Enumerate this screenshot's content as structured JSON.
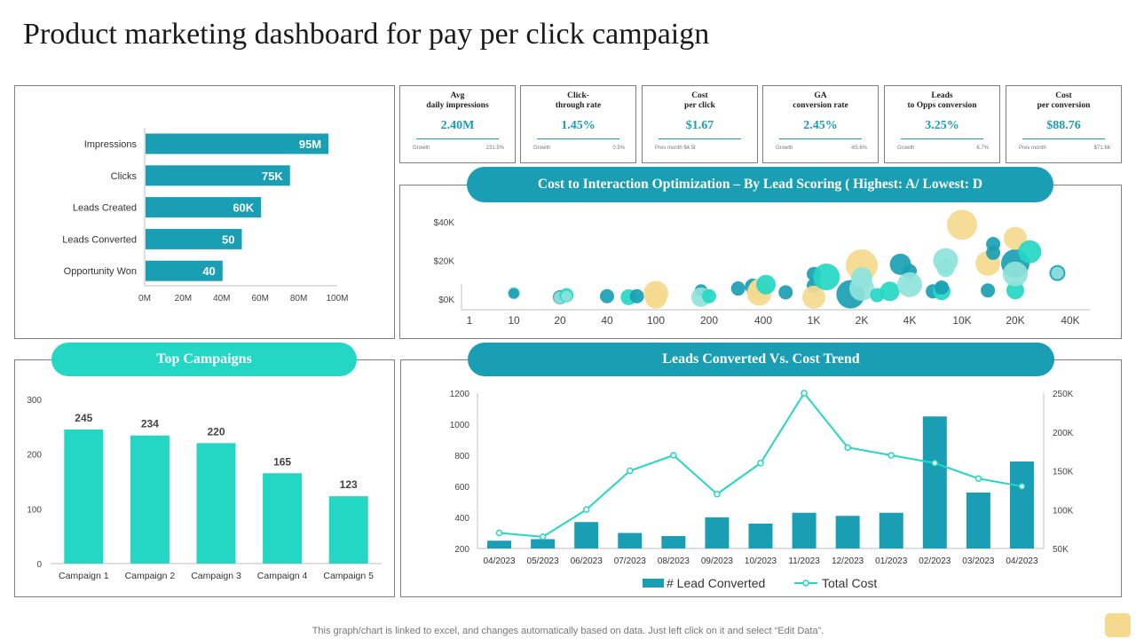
{
  "page": {
    "title": "Product marketing dashboard for pay per click campaign",
    "footnote": "This graph/chart is linked to excel,  and changes automatically based on data. Just left click on it and select “Edit Data”."
  },
  "colors": {
    "teal": "#1a9eb3",
    "aqua": "#24d7c4",
    "mint": "#8fe3da",
    "sand": "#f4d98e",
    "axis": "#bfbfbf"
  },
  "kpis": [
    {
      "label_line1": "Avg",
      "label_line2": "daily impressions",
      "value": "2.40M",
      "foot_left": "Growth",
      "foot_right": "231.5%"
    },
    {
      "label_line1": "Click-",
      "label_line2": "through rate",
      "value": "1.45%",
      "foot_left": "Growth",
      "foot_right": "0.5%"
    },
    {
      "label_line1": "Cost",
      "label_line2": "per click",
      "value": "$1.67",
      "foot_left": "Prev month $4.5t",
      "foot_right": ""
    },
    {
      "label_line1": "GA",
      "label_line2": "conversion rate",
      "value": "2.45%",
      "foot_left": "Growth",
      "foot_right": "-65.6%"
    },
    {
      "label_line1": "Leads",
      "label_line2": "to Opps conversion",
      "value": "3.25%",
      "foot_left": "Growth",
      "foot_right": "6.7%"
    },
    {
      "label_line1": "Cost",
      "label_line2": "per conversion",
      "value": "$88.76",
      "foot_left": "Prev month",
      "foot_right": "$71.66"
    }
  ],
  "headers": {
    "bubble": "Cost to Interaction Optimization – By Lead Scoring ( Highest: A/ Lowest: D",
    "campaigns": "Top Campaigns",
    "trend": "Leads Converted Vs. Cost Trend"
  },
  "chart_data": [
    {
      "type": "bar",
      "orientation": "horizontal",
      "categories": [
        "Impressions",
        "Clicks",
        "Leads Created",
        "Leads Converted",
        "Opportunity Won"
      ],
      "values": [
        95,
        75,
        60,
        50,
        40
      ],
      "data_labels": [
        "95M",
        "75K",
        "60K",
        "50",
        "40"
      ],
      "x_ticks": [
        "0M",
        "20M",
        "40M",
        "60M",
        "80M",
        "100M"
      ],
      "xlim": [
        0,
        100
      ],
      "grid": false
    },
    {
      "type": "scatter",
      "subtype": "bubble",
      "title": "Cost to Interaction Optimization – By Lead Scoring ( Highest: A/ Lowest: D",
      "x_scale": "log",
      "x_ticks": [
        "1",
        "10",
        "20",
        "40",
        "100",
        "200",
        "400",
        "1K",
        "2K",
        "4K",
        "10K",
        "20K",
        "40K"
      ],
      "y_ticks": [
        "$0K",
        "$20K",
        "$40K"
      ],
      "ylim": [
        0,
        40000
      ],
      "points": [
        {
          "x": 10,
          "y": 3000,
          "r": 7,
          "c": "mint"
        },
        {
          "x": 10,
          "y": 3000,
          "r": 6,
          "c": "teal"
        },
        {
          "x": 20,
          "y": 1000,
          "r": 8,
          "c": "teal"
        },
        {
          "x": 20,
          "y": 800,
          "r": 7,
          "c": "mint"
        },
        {
          "x": 22,
          "y": 2000,
          "r": 8,
          "c": "aqua"
        },
        {
          "x": 22,
          "y": 1500,
          "r": 6,
          "c": "mint"
        },
        {
          "x": 40,
          "y": 1500,
          "r": 8,
          "c": "teal"
        },
        {
          "x": 60,
          "y": 1000,
          "r": 9,
          "c": "aqua"
        },
        {
          "x": 70,
          "y": 1500,
          "r": 8,
          "c": "teal"
        },
        {
          "x": 100,
          "y": 3000,
          "r": 14,
          "c": "sand"
        },
        {
          "x": 100,
          "y": 500,
          "r": 12,
          "c": "sand"
        },
        {
          "x": 180,
          "y": 4500,
          "r": 7,
          "c": "teal"
        },
        {
          "x": 180,
          "y": 1000,
          "r": 11,
          "c": "mint"
        },
        {
          "x": 200,
          "y": 1500,
          "r": 8,
          "c": "aqua"
        },
        {
          "x": 290,
          "y": 5500,
          "r": 8,
          "c": "teal"
        },
        {
          "x": 350,
          "y": 6500,
          "r": 9,
          "c": "teal"
        },
        {
          "x": 380,
          "y": 3000,
          "r": 14,
          "c": "sand"
        },
        {
          "x": 380,
          "y": 5000,
          "r": 12,
          "c": "sand"
        },
        {
          "x": 420,
          "y": 7500,
          "r": 11,
          "c": "aqua"
        },
        {
          "x": 600,
          "y": 3500,
          "r": 8,
          "c": "teal"
        },
        {
          "x": 1000,
          "y": 7000,
          "r": 8,
          "c": "teal"
        },
        {
          "x": 1000,
          "y": 1000,
          "r": 13,
          "c": "sand"
        },
        {
          "x": 1000,
          "y": 13000,
          "r": 8,
          "c": "teal"
        },
        {
          "x": 1200,
          "y": 11500,
          "r": 15,
          "c": "aqua"
        },
        {
          "x": 1700,
          "y": 2500,
          "r": 16,
          "c": "teal"
        },
        {
          "x": 2000,
          "y": 17500,
          "r": 18,
          "c": "sand"
        },
        {
          "x": 2000,
          "y": 5500,
          "r": 14,
          "c": "mint"
        },
        {
          "x": 2000,
          "y": 11000,
          "r": 12,
          "c": "mint"
        },
        {
          "x": 2500,
          "y": 2000,
          "r": 8,
          "c": "aqua"
        },
        {
          "x": 3000,
          "y": 4000,
          "r": 11,
          "c": "aqua"
        },
        {
          "x": 3500,
          "y": 18000,
          "r": 12,
          "c": "teal"
        },
        {
          "x": 4000,
          "y": 14500,
          "r": 8,
          "c": "teal"
        },
        {
          "x": 4000,
          "y": 7500,
          "r": 14,
          "c": "mint"
        },
        {
          "x": 6000,
          "y": 4000,
          "r": 8,
          "c": "teal"
        },
        {
          "x": 7000,
          "y": 4000,
          "r": 10,
          "c": "aqua"
        },
        {
          "x": 7000,
          "y": 6000,
          "r": 8,
          "c": "teal"
        },
        {
          "x": 7500,
          "y": 20000,
          "r": 14,
          "c": "mint"
        },
        {
          "x": 7500,
          "y": 16000,
          "r": 10,
          "c": "mint"
        },
        {
          "x": 10000,
          "y": 38500,
          "r": 17,
          "c": "sand"
        },
        {
          "x": 14000,
          "y": 4500,
          "r": 8,
          "c": "teal"
        },
        {
          "x": 14000,
          "y": 18500,
          "r": 14,
          "c": "sand"
        },
        {
          "x": 15000,
          "y": 28500,
          "r": 8,
          "c": "teal"
        },
        {
          "x": 15000,
          "y": 24000,
          "r": 8,
          "c": "teal"
        },
        {
          "x": 20000,
          "y": 4500,
          "r": 10,
          "c": "aqua"
        },
        {
          "x": 20000,
          "y": 18500,
          "r": 16,
          "c": "teal"
        },
        {
          "x": 20000,
          "y": 13000,
          "r": 14,
          "c": "mint"
        },
        {
          "x": 20000,
          "y": 31500,
          "r": 13,
          "c": "sand"
        },
        {
          "x": 24000,
          "y": 24500,
          "r": 13,
          "c": "aqua"
        },
        {
          "x": 34000,
          "y": 13500,
          "r": 9,
          "c": "teal"
        },
        {
          "x": 34000,
          "y": 13500,
          "r": 7,
          "c": "mint"
        }
      ]
    },
    {
      "type": "bar",
      "title": "Top Campaigns",
      "categories": [
        "Campaign 1",
        "Campaign 2",
        "Campaign 3",
        "Campaign 4",
        "Campaign 5"
      ],
      "values": [
        245,
        234,
        220,
        165,
        123
      ],
      "ylim": [
        0,
        300
      ],
      "y_ticks": [
        0,
        100,
        200,
        300
      ],
      "grid": false
    },
    {
      "type": "bar",
      "subtype": "bar+line, dual axis",
      "title": "Leads Converted Vs. Cost Trend",
      "categories": [
        "04/2023",
        "05/2023",
        "06/2023",
        "07/2023",
        "08/2023",
        "09/2023",
        "10/2023",
        "11/2023",
        "12/2023",
        "01/2023",
        "02/2023",
        "03/2023",
        "04/2023"
      ],
      "series": [
        {
          "name": "# Lead Converted",
          "type": "bar",
          "axis": "left",
          "values": [
            250,
            260,
            370,
            300,
            280,
            400,
            360,
            430,
            410,
            430,
            1050,
            560,
            760
          ]
        },
        {
          "name": "Total Cost",
          "type": "line",
          "axis": "right",
          "values": [
            70000,
            65000,
            100000,
            150000,
            170000,
            120000,
            160000,
            250000,
            180000,
            170000,
            160000,
            140000,
            130000
          ]
        }
      ],
      "ylim_left": [
        200,
        1200
      ],
      "y_ticks_left": [
        200,
        400,
        600,
        800,
        1000,
        1200
      ],
      "ylim_right": [
        50000,
        250000
      ],
      "y_ticks_right": [
        "50K",
        "100K",
        "150K",
        "200K",
        "250K"
      ],
      "legend_position": "bottom",
      "grid": false
    }
  ]
}
